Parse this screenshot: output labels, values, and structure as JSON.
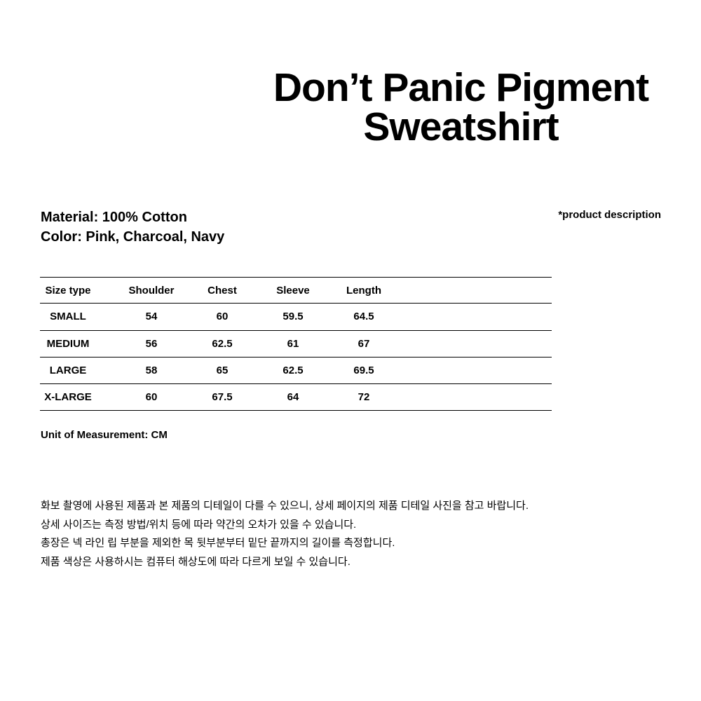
{
  "page": {
    "background_color": "#ffffff",
    "text_color": "#000000"
  },
  "title": "Don’t Panic Pigment Sweatshirt",
  "product_info": {
    "material": "Material: 100% Cotton",
    "color": "Color: Pink, Charcoal, Navy",
    "description_note": "*product description"
  },
  "size_table": {
    "columns": [
      "Size type",
      "Shoulder",
      "Chest",
      "Sleeve",
      "Length"
    ],
    "rows": [
      {
        "size": "SMALL",
        "shoulder": "54",
        "chest": "60",
        "sleeve": "59.5",
        "length": "64.5"
      },
      {
        "size": "MEDIUM",
        "shoulder": "56",
        "chest": "62.5",
        "sleeve": "61",
        "length": "67"
      },
      {
        "size": "LARGE",
        "shoulder": "58",
        "chest": "65",
        "sleeve": "62.5",
        "length": "69.5"
      },
      {
        "size": "X-LARGE",
        "shoulder": "60",
        "chest": "67.5",
        "sleeve": "64",
        "length": "72"
      }
    ],
    "unit_note": "Unit of Measurement: CM"
  },
  "notices": [
    "화보 촬영에 사용된 제품과 본 제품의 디테일이 다를 수 있으니, 상세 페이지의 제품 디테일 사진을 참고 바랍니다.",
    "상세 사이즈는 측정 방법/위치 등에 따라 약간의 오차가 있을 수 있습니다.",
    "총장은 넥 라인 립 부분을 제외한 목 뒷부분부터 밑단 끝까지의 길이를 측정합니다.",
    "제품 색상은 사용하시는 컴퓨터 해상도에 따라 다르게 보일 수 있습니다."
  ]
}
